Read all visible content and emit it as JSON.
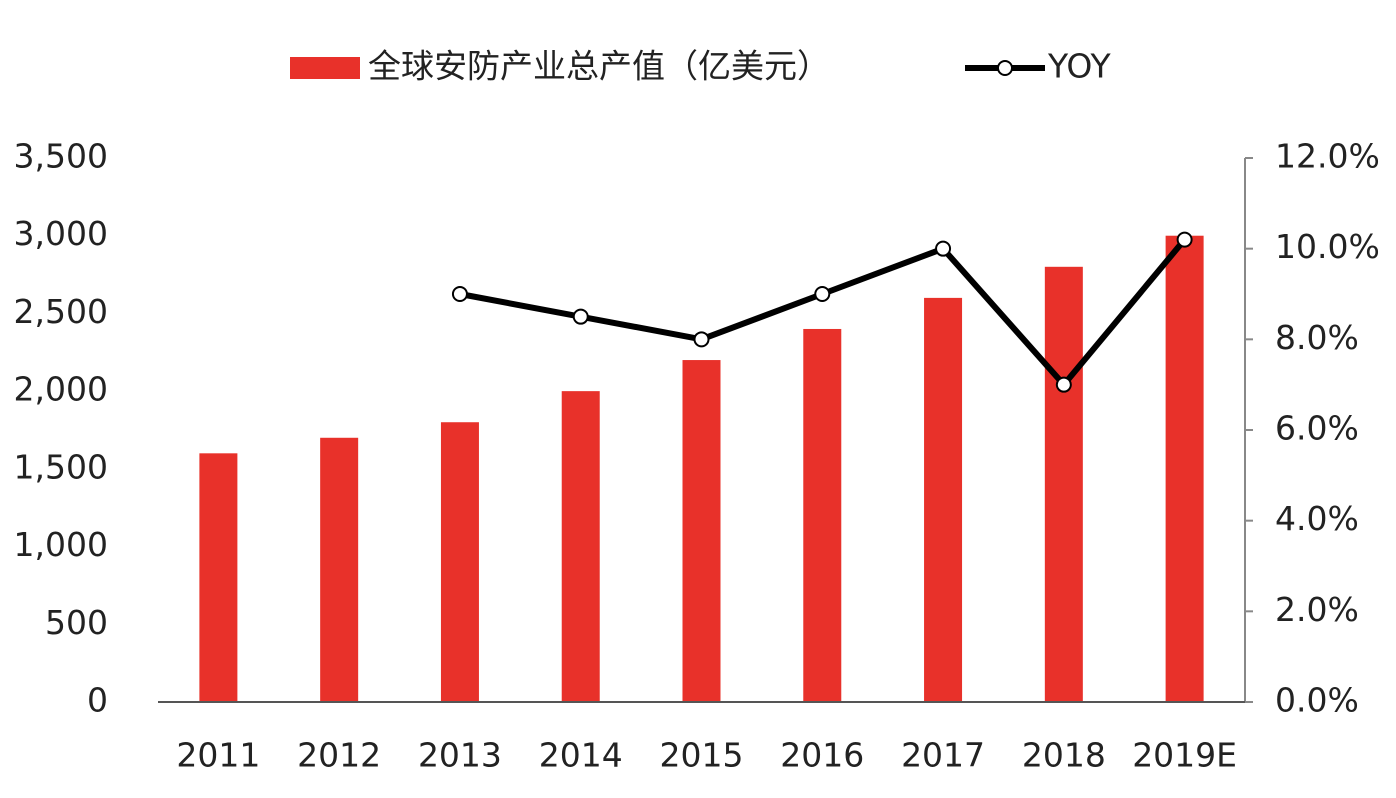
{
  "chart_data": {
    "type": "bar",
    "categories": [
      "2011",
      "2012",
      "2013",
      "2014",
      "2015",
      "2016",
      "2017",
      "2018",
      "2019E"
    ],
    "series": [
      {
        "name": "全球安防产业总产值（亿美元）",
        "color": "#e8312a",
        "type": "bar",
        "values": [
          1600,
          1700,
          1800,
          2000,
          2200,
          2400,
          2600,
          2800,
          3000
        ]
      },
      {
        "name": "YOY",
        "color": "#000000",
        "type": "line",
        "axis": "y2",
        "values": [
          null,
          null,
          9.0,
          8.5,
          8.0,
          9.0,
          10.0,
          7.0,
          10.2
        ]
      }
    ],
    "ylim": [
      0,
      3500
    ],
    "yticks": [
      0,
      500,
      {
        "value": 1000,
        "label": "1,000"
      },
      {
        "value": 1500,
        "label": "1,500"
      },
      {
        "value": 2000,
        "label": "2,000"
      },
      {
        "value": 2500,
        "label": "2,500"
      },
      {
        "value": 3000,
        "label": "3,000"
      },
      {
        "value": 3500,
        "label": "3,500"
      }
    ],
    "y2lim": [
      0,
      12
    ],
    "y2ticks": [
      {
        "value": 0,
        "label": "0.0%"
      },
      {
        "value": 2,
        "label": "2.0%"
      },
      {
        "value": 4,
        "label": "4.0%"
      },
      {
        "value": 6,
        "label": "6.0%"
      },
      {
        "value": 8,
        "label": "8.0%"
      },
      {
        "value": 10,
        "label": "10.0%"
      },
      {
        "value": 12,
        "label": "12.0%"
      }
    ],
    "legend": "top"
  }
}
